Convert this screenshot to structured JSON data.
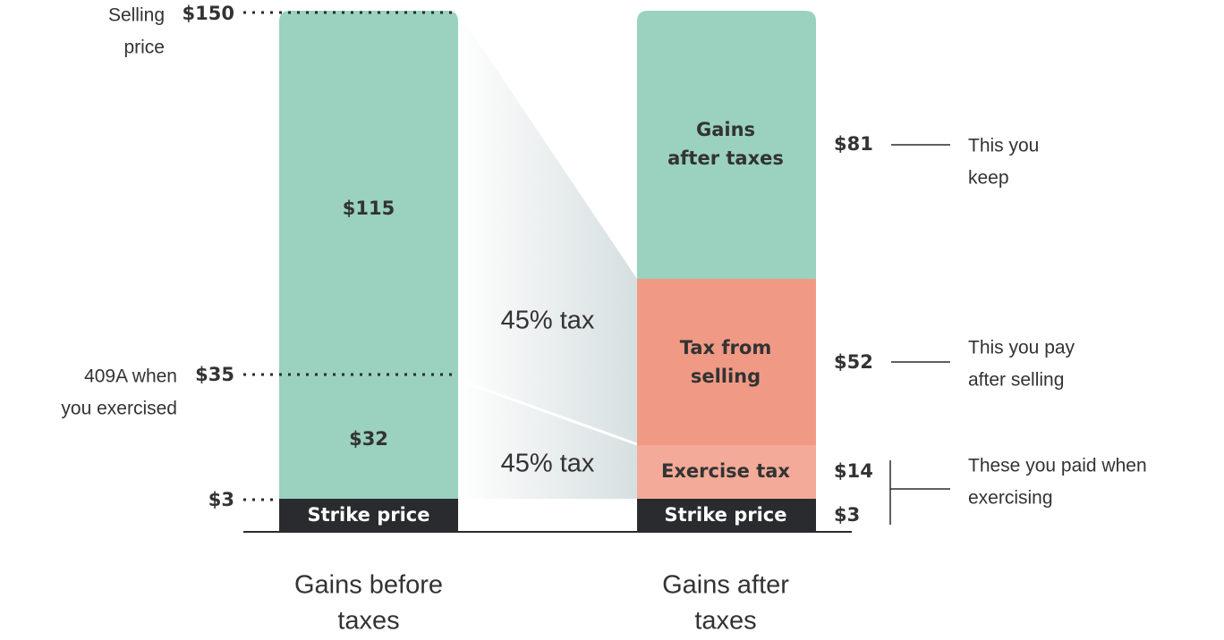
{
  "left_axis": [
    {
      "price": "$150",
      "note": [
        "Selling",
        "price"
      ]
    },
    {
      "price": "$35",
      "note": [
        "409A  when",
        "you exercised"
      ]
    },
    {
      "price": "$3"
    }
  ],
  "before_bar": {
    "segments": [
      "$115",
      "$32",
      "Strike price"
    ],
    "caption": [
      "Gains before",
      "taxes"
    ]
  },
  "tax_labels": [
    "45% tax",
    "45% tax"
  ],
  "after_bar": {
    "segments": [
      [
        "Gains",
        "after taxes"
      ],
      [
        "Tax from",
        "selling"
      ],
      [
        "Exercise tax"
      ],
      [
        "Strike price"
      ]
    ],
    "caption": [
      "Gains after",
      "taxes"
    ]
  },
  "right_values": [
    "$81",
    "$52",
    "$14",
    "$3"
  ],
  "notes": [
    [
      "This you",
      "keep"
    ],
    [
      "This you pay",
      "after selling"
    ],
    [
      "These you paid when",
      "exercising"
    ]
  ]
}
